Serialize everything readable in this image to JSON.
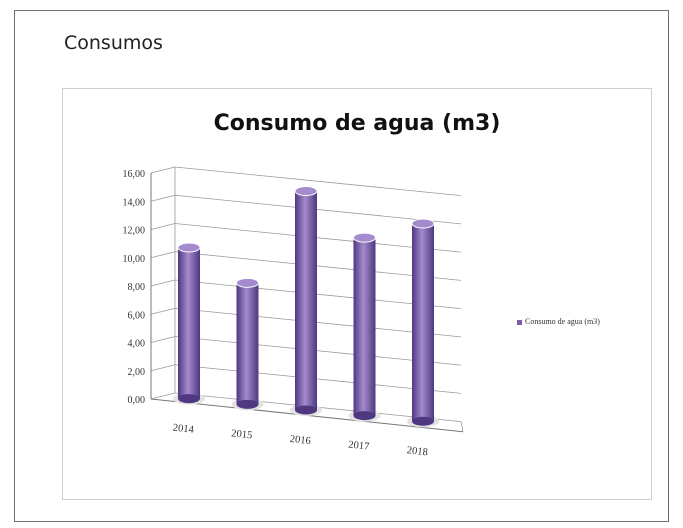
{
  "page": {
    "section_title": "Consumos"
  },
  "chart_data": {
    "type": "bar",
    "title": "Consumo de agua (m3)",
    "categories": [
      "2014",
      "2015",
      "2016",
      "2017",
      "2018"
    ],
    "series": [
      {
        "name": "Consumo de agua (m3)",
        "values": [
          10.7,
          8.6,
          15.5,
          12.6,
          14.0
        ]
      }
    ],
    "y_ticks": [
      "0,00",
      "2,00",
      "4,00",
      "6,00",
      "8,00",
      "10,00",
      "12,00",
      "14,00",
      "16,00"
    ],
    "ylim": [
      0,
      16
    ],
    "grid": true,
    "legend_position": "right",
    "bar_color": "#7b5cab",
    "bar_dark": "#4f3880",
    "bar_light": "#a38bcd"
  }
}
